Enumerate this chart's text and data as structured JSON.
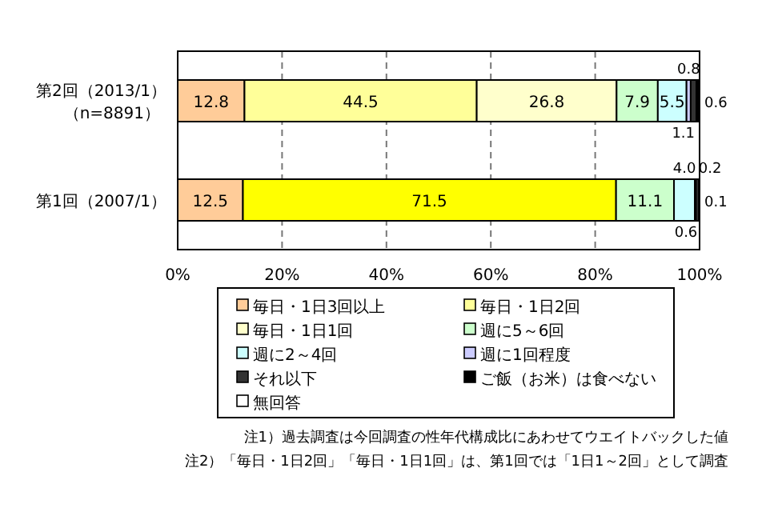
{
  "chart_data": {
    "type": "bar",
    "orientation": "horizontal",
    "stacked": true,
    "categories": [
      "第2回（2013/1）（n=8891）",
      "第1回（2007/1）"
    ],
    "series": [
      {
        "name": "毎日・1日3回以上",
        "color": "#ffcc99",
        "values": [
          12.8,
          12.5
        ],
        "value_labels": [
          "12.8",
          "12.5"
        ]
      },
      {
        "name": "毎日・1日2回",
        "color": "#ffff99",
        "colors": [
          "#ffff99",
          "#ffff00"
        ],
        "values": [
          44.5,
          71.5
        ],
        "value_labels": [
          "44.5",
          "71.5"
        ]
      },
      {
        "name": "毎日・1日1回",
        "color": "#ffffcc",
        "values": [
          26.8,
          null
        ],
        "value_labels": [
          "26.8",
          null
        ]
      },
      {
        "name": "週に5～6回",
        "color": "#ccffcc",
        "values": [
          7.9,
          11.1
        ],
        "value_labels": [
          "7.9",
          "11.1"
        ]
      },
      {
        "name": "週に2～4回",
        "color": "#ccffff",
        "values": [
          5.5,
          4.0
        ],
        "value_labels": [
          "5.5",
          "4.0"
        ]
      },
      {
        "name": "週に1回程度",
        "color": "#ccccff",
        "values": [
          0.8,
          0.2
        ],
        "value_labels": [
          "0.8",
          "0.2"
        ]
      },
      {
        "name": "それ以下",
        "color": "#333333",
        "values": [
          1.1,
          0.6
        ],
        "value_labels": [
          "1.1",
          "0.6"
        ]
      },
      {
        "name": "ご飯（お米）は食べない",
        "color": "#000000",
        "values": [
          0.6,
          0.1
        ],
        "value_labels": [
          "0.6",
          "0.1"
        ]
      },
      {
        "name": "無回答",
        "color": "#ffffff",
        "values": [
          null,
          null
        ]
      }
    ],
    "xlim": [
      0,
      100
    ],
    "xticks": [
      {
        "value": 0,
        "label": "0%"
      },
      {
        "value": 20,
        "label": "20%"
      },
      {
        "value": 40,
        "label": "40%"
      },
      {
        "value": 60,
        "label": "60%"
      },
      {
        "value": 80,
        "label": "80%"
      },
      {
        "value": 100,
        "label": "100%"
      }
    ],
    "grid": "x",
    "legend": "bottom",
    "annotations": [
      "注1）過去調査は今回調査の性年代構成比にあわせてウエイトバックした値",
      "注2）「毎日・1日2回」「毎日・1日1回」は、第1回では「1日1～2回」として調査"
    ]
  }
}
